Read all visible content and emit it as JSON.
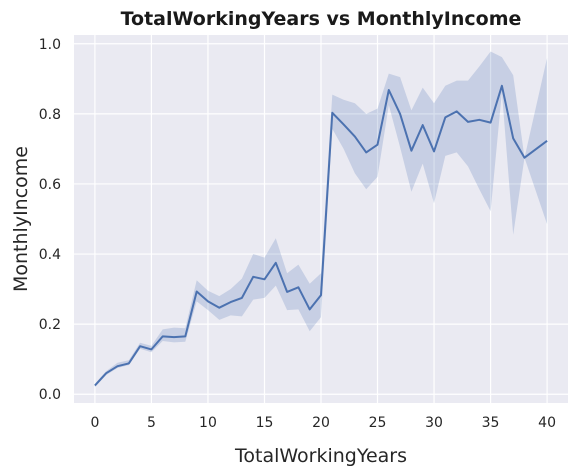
{
  "chart_data": {
    "type": "line",
    "title": "TotalWorkingYears vs MonthlyIncome",
    "xlabel": "TotalWorkingYears",
    "ylabel": "MonthlyIncome",
    "xlim": [
      -1.85,
      41.85
    ],
    "ylim": [
      -0.025,
      1.025
    ],
    "xticks": [
      0,
      5,
      10,
      15,
      20,
      25,
      30,
      35,
      40
    ],
    "yticks": [
      0.0,
      0.2,
      0.4,
      0.6,
      0.8,
      1.0
    ],
    "grid": true,
    "series": [
      {
        "color": "#4c72b0",
        "band_color": "#4c72b0",
        "x": [
          0,
          1,
          2,
          3,
          4,
          5,
          6,
          7,
          8,
          9,
          10,
          11,
          12,
          13,
          14,
          15,
          16,
          17,
          18,
          19,
          20,
          21,
          22,
          23,
          24,
          25,
          26,
          27,
          28,
          29,
          30,
          31,
          32,
          33,
          34,
          35,
          36,
          37,
          38,
          40
        ],
        "y": [
          0.025,
          0.06,
          0.08,
          0.088,
          0.137,
          0.128,
          0.165,
          0.163,
          0.165,
          0.293,
          0.265,
          0.247,
          0.263,
          0.275,
          0.335,
          0.328,
          0.375,
          0.292,
          0.305,
          0.242,
          0.283,
          0.803,
          0.77,
          0.735,
          0.69,
          0.712,
          0.868,
          0.8,
          0.695,
          0.768,
          0.693,
          0.79,
          0.807,
          0.777,
          0.783,
          0.775,
          0.88,
          0.73,
          0.675,
          0.723
        ],
        "lower": [
          0.02,
          0.055,
          0.075,
          0.083,
          0.13,
          0.12,
          0.152,
          0.148,
          0.15,
          0.265,
          0.24,
          0.212,
          0.225,
          0.222,
          0.27,
          0.275,
          0.31,
          0.24,
          0.242,
          0.18,
          0.22,
          0.757,
          0.7,
          0.63,
          0.585,
          0.62,
          0.825,
          0.705,
          0.578,
          0.658,
          0.545,
          0.68,
          0.69,
          0.65,
          0.585,
          0.522,
          0.862,
          0.455,
          0.675,
          0.485
        ],
        "upper": [
          0.03,
          0.066,
          0.09,
          0.097,
          0.147,
          0.138,
          0.185,
          0.19,
          0.188,
          0.325,
          0.295,
          0.28,
          0.3,
          0.33,
          0.4,
          0.39,
          0.445,
          0.345,
          0.37,
          0.315,
          0.345,
          0.855,
          0.84,
          0.83,
          0.8,
          0.815,
          0.915,
          0.905,
          0.81,
          0.875,
          0.83,
          0.88,
          0.895,
          0.895,
          0.935,
          0.978,
          0.962,
          0.91,
          0.675,
          0.96
        ]
      }
    ]
  }
}
